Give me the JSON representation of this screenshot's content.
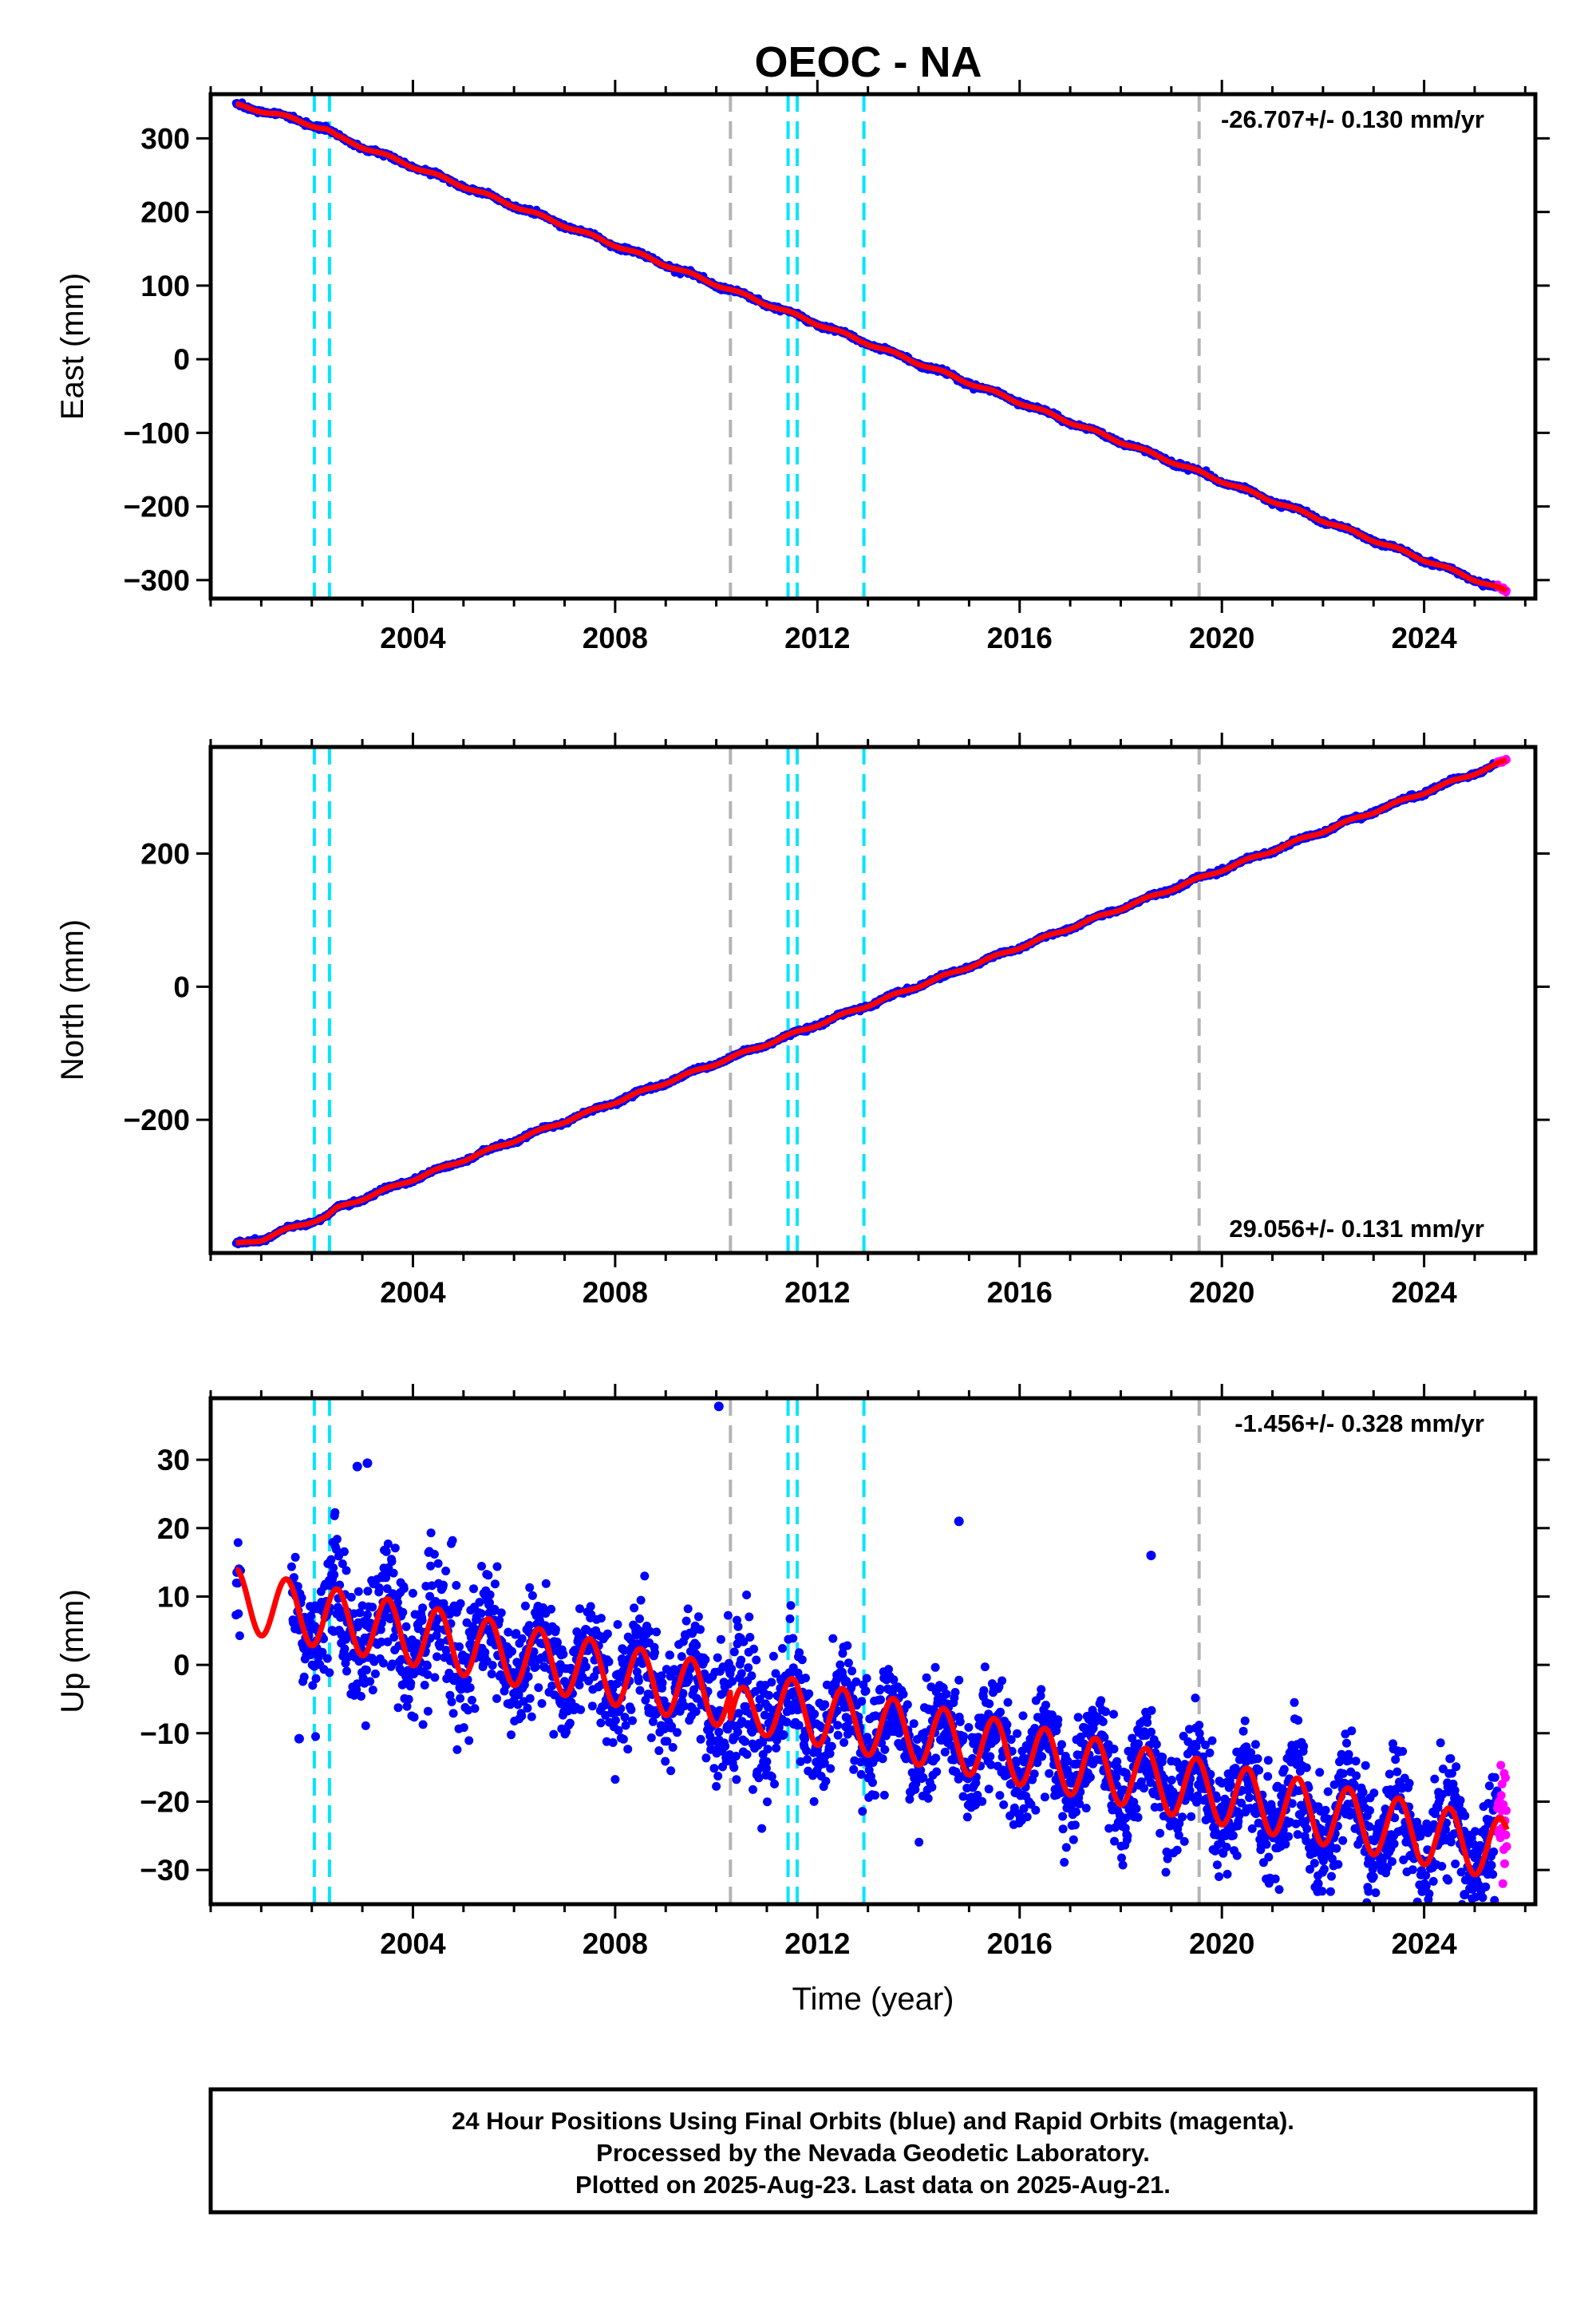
{
  "chart_data": {
    "type": "scatter",
    "title": "OEOC - NA",
    "xlabel": "Time (year)",
    "xlim": [
      2000.0,
      2026.2
    ],
    "x_ticks": [
      2004,
      2008,
      2012,
      2016,
      2020,
      2024
    ],
    "x_tick_labels": [
      "2004",
      "2008",
      "2012",
      "2016",
      "2020",
      "2024"
    ],
    "data_range": [
      2000.5,
      2025.64
    ],
    "rapid_start": 2025.45,
    "colors": {
      "final": "#0000ff",
      "rapid": "#ff00ff",
      "model": "#ff0000",
      "equipment_change": "#00e5ff",
      "earthquake": "#b4b4b4"
    },
    "equipment_change_epochs": [
      2002.05,
      2002.35,
      2011.42,
      2011.6,
      2012.92
    ],
    "earthquake_epochs": [
      2010.28,
      2019.55
    ],
    "panels": [
      {
        "name": "east",
        "ylabel": "East (mm)",
        "ylim": [
          -325,
          360
        ],
        "y_ticks": [
          -300,
          -200,
          -100,
          0,
          100,
          200,
          300
        ],
        "y_tick_labels": [
          "−300",
          "−200",
          "−100",
          "0",
          "100",
          "200",
          "300"
        ],
        "rate": "-26.707+/- 0.130 mm/yr",
        "rate_position": "top-right",
        "model": {
          "slope": -26.707,
          "intercept_at_2000.5": 345,
          "offsets": [
            {
              "epoch": 2002.35,
              "size": 0
            },
            {
              "epoch": 2010.28,
              "size": 0
            }
          ],
          "early_curvature": [
            [
              2000.5,
              345
            ],
            [
              2001.3,
              333
            ],
            [
              2002.3,
              312
            ],
            [
              2002.5,
              302
            ]
          ],
          "seasonal_amplitude": 2,
          "noise": 1.5
        }
      },
      {
        "name": "north",
        "ylabel": "North (mm)",
        "ylim": [
          -400,
          360
        ],
        "y_ticks": [
          -200,
          0,
          200
        ],
        "y_tick_labels": [
          "−200",
          "0",
          "200"
        ],
        "rate": "29.056+/- 0.131 mm/yr",
        "rate_position": "bottom-right",
        "model": {
          "slope": 29.056,
          "intercept_at_2000.5": -387,
          "early_curvature": [
            [
              2000.5,
              -387
            ],
            [
              2001.0,
              -380
            ],
            [
              2001.5,
              -365
            ],
            [
              2002.3,
              -345
            ],
            [
              2002.5,
              -333
            ]
          ],
          "seasonal_amplitude": 2,
          "noise": 1.5
        }
      },
      {
        "name": "up",
        "ylabel": "Up (mm)",
        "ylim": [
          -35,
          39
        ],
        "y_ticks": [
          -30,
          -20,
          -10,
          0,
          10,
          20,
          30
        ],
        "y_tick_labels": [
          "−30",
          "−20",
          "−10",
          "0",
          "10",
          "20",
          "30"
        ],
        "rate": "-1.456+/- 0.328 mm/yr",
        "rate_position": "top-right",
        "model": {
          "slope": -1.456,
          "intercept_at_2000.5": 9.5,
          "seasonal_amplitude": 4.5,
          "noise": 4.0
        },
        "outliers": [
          [
            2010.05,
            37.8
          ],
          [
            2001.75,
            -10.8
          ],
          [
            2021.9,
            -32.0
          ],
          [
            2024.8,
            -33.6
          ],
          [
            2003.1,
            29.5
          ],
          [
            2002.9,
            29.0
          ],
          [
            2014.8,
            21.0
          ],
          [
            2018.6,
            16.0
          ]
        ]
      }
    ]
  },
  "caption": {
    "lines": [
      "24 Hour Positions Using Final Orbits (blue) and Rapid Orbits (magenta).",
      "Processed by the Nevada Geodetic Laboratory.",
      "Plotted on 2025-Aug-23. Last data on 2025-Aug-21."
    ]
  }
}
